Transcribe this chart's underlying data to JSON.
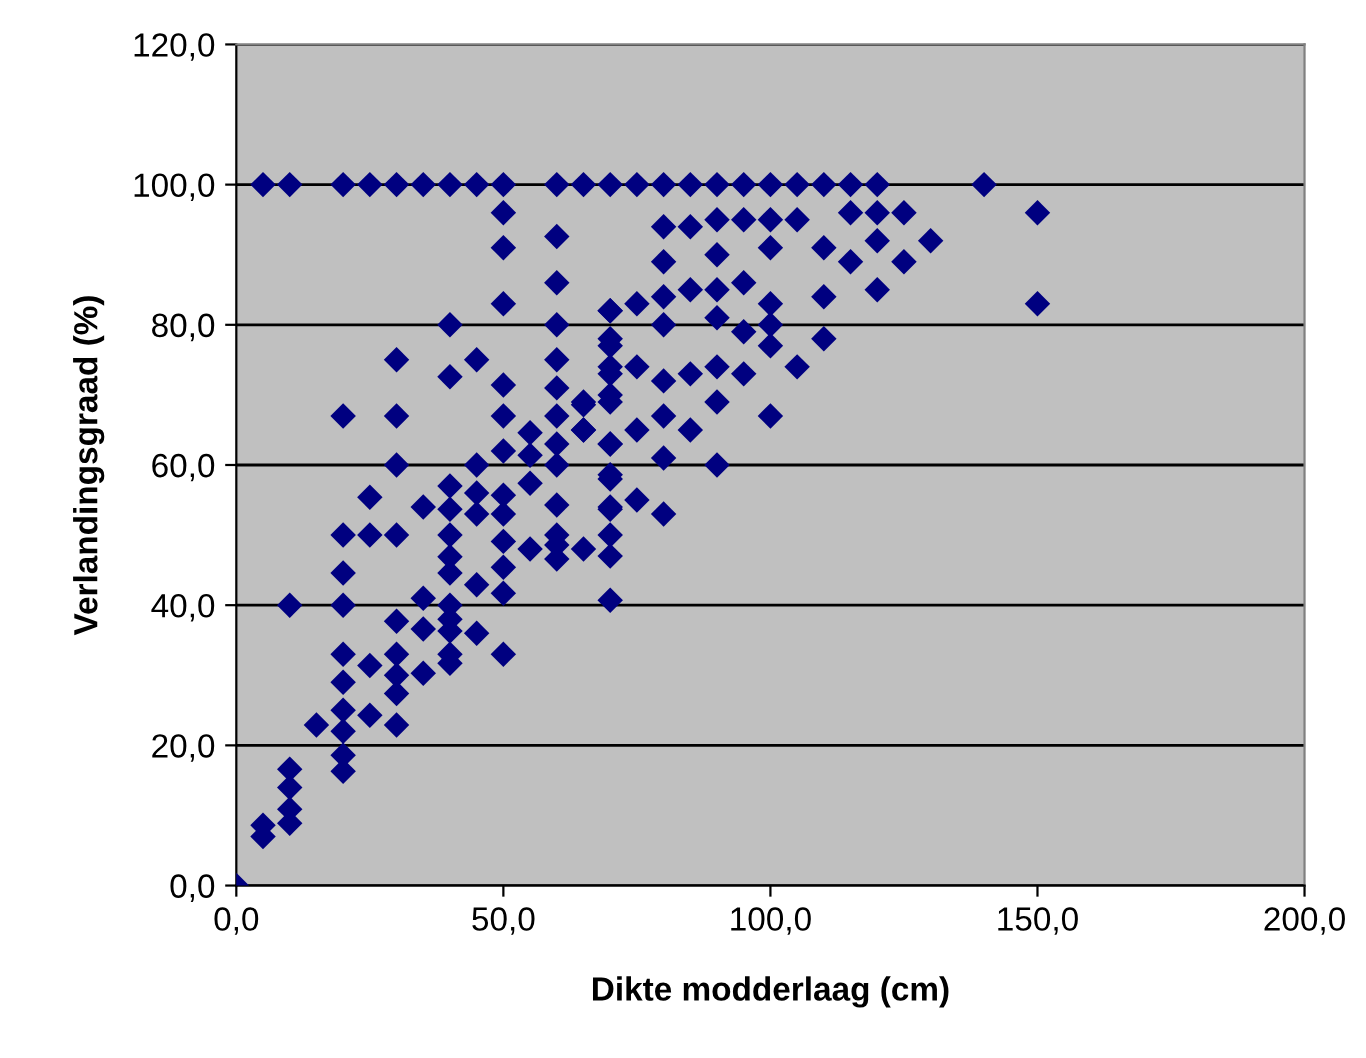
{
  "chart_data": {
    "type": "scatter",
    "xlabel": "Dikte modderlaag (cm)",
    "ylabel": "Verlandingsgraad (%)",
    "xlim": [
      0,
      200
    ],
    "ylim": [
      0,
      120
    ],
    "xticks": [
      {
        "value": 0,
        "label": "0,0"
      },
      {
        "value": 50,
        "label": "50,0"
      },
      {
        "value": 100,
        "label": "100,0"
      },
      {
        "value": 150,
        "label": "150,0"
      },
      {
        "value": 200,
        "label": "200,0"
      }
    ],
    "yticks": [
      {
        "value": 0,
        "label": "0,0"
      },
      {
        "value": 20,
        "label": "20,0"
      },
      {
        "value": 40,
        "label": "40,0"
      },
      {
        "value": 60,
        "label": "60,0"
      },
      {
        "value": 80,
        "label": "80,0"
      },
      {
        "value": 100,
        "label": "100,0"
      },
      {
        "value": 120,
        "label": "120,0"
      }
    ],
    "grid": "y",
    "marker": "diamond",
    "legend": false,
    "series": [
      {
        "color": "#000080",
        "x": [
          5,
          10,
          20,
          25,
          30,
          35,
          40,
          45,
          50,
          60,
          65,
          70,
          75,
          80,
          85,
          90,
          95,
          100,
          105,
          110,
          115,
          120,
          140,
          50,
          60,
          50,
          60,
          50,
          70,
          40,
          60,
          70,
          30,
          45,
          60,
          70,
          40,
          50,
          60,
          65,
          70,
          20,
          30,
          50,
          60,
          55,
          65,
          70,
          50,
          60,
          55,
          30,
          45,
          60,
          55,
          70,
          40,
          25,
          45,
          50,
          35,
          40,
          60,
          70,
          80,
          85,
          90,
          95,
          100,
          105,
          115,
          120,
          125,
          150,
          120,
          130,
          110,
          80,
          90,
          100,
          115,
          125,
          85,
          90,
          95,
          80,
          75,
          70,
          100,
          110,
          120,
          150,
          80,
          90,
          95,
          100,
          70,
          100,
          110,
          75,
          70,
          80,
          85,
          90,
          95,
          105,
          70,
          65,
          90,
          65,
          70,
          75,
          80,
          85,
          100,
          80,
          90,
          70,
          75,
          70,
          80,
          0,
          5,
          5,
          10,
          10,
          10,
          10,
          10,
          15,
          20,
          20,
          20,
          20,
          20,
          20,
          20,
          20,
          20,
          25,
          25,
          25,
          30,
          30,
          30,
          30,
          30,
          30,
          35,
          35,
          35,
          40,
          40,
          40,
          40,
          40,
          40,
          40,
          40,
          45,
          45,
          45,
          50,
          50,
          50,
          50,
          50,
          55,
          60,
          60,
          65,
          70,
          70,
          60,
          70
        ],
        "values": [
          100,
          100,
          100,
          100,
          100,
          100,
          100,
          100,
          100,
          100,
          100,
          100,
          100,
          100,
          100,
          100,
          100,
          100,
          100,
          100,
          100,
          100,
          100,
          96,
          92.6,
          91,
          86,
          83,
          82,
          80,
          80,
          78,
          75,
          75,
          75,
          74,
          72.6,
          71.4,
          71,
          68.6,
          70,
          67,
          67,
          67,
          67,
          64.6,
          65,
          63,
          62,
          63,
          61.4,
          60,
          60,
          60,
          57.4,
          58.6,
          57,
          55.4,
          56,
          55.7,
          54,
          53.7,
          54.3,
          53.7,
          94,
          94,
          95,
          95,
          95,
          95,
          96,
          96,
          96,
          96,
          92,
          92,
          91,
          89,
          90,
          91,
          89,
          89,
          85,
          85,
          86,
          84,
          83,
          82,
          83,
          84,
          85,
          83,
          80,
          81,
          79,
          80,
          77,
          77,
          78,
          74,
          73,
          72,
          73,
          74,
          73,
          74,
          69,
          69,
          69,
          65,
          63,
          65,
          67,
          65,
          67,
          61,
          60,
          58,
          55,
          54,
          53,
          0,
          8.6,
          7,
          16.6,
          14,
          10.9,
          8.9,
          40,
          22.9,
          50,
          44.6,
          40,
          33,
          29,
          25,
          22,
          18.6,
          16.3,
          50,
          31.4,
          24.3,
          50,
          37.7,
          33,
          30,
          27.4,
          22.9,
          41,
          36.6,
          30.3,
          50,
          46.9,
          44.6,
          40,
          38,
          36.3,
          33,
          31.7,
          53,
          42.9,
          36,
          53,
          49.1,
          45.4,
          41.7,
          33,
          48,
          46.6,
          48.6,
          48,
          47,
          40.7,
          50,
          50
        ]
      }
    ]
  }
}
